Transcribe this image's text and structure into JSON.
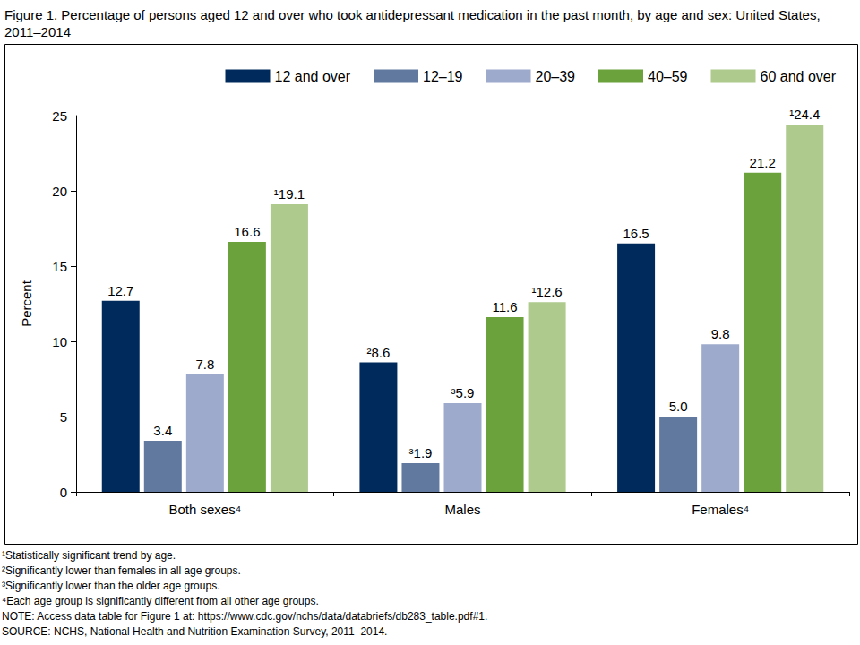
{
  "chart_data": {
    "type": "bar",
    "title": "Figure 1. Percentage of persons aged 12 and over who took antidepressant medication in the past month, by age and sex: United States, 2011–2014",
    "categories": [
      "Both sexes⁴",
      "Males",
      "Females⁴"
    ],
    "series": [
      {
        "name": "12 and over",
        "color": "#002a5c",
        "values": [
          12.7,
          8.6,
          16.5
        ],
        "value_labels": [
          "12.7",
          "²8.6",
          "16.5"
        ]
      },
      {
        "name": "12–19",
        "color": "#61789f",
        "values": [
          3.4,
          1.9,
          5.0
        ],
        "value_labels": [
          "3.4",
          "³1.9",
          "5.0"
        ]
      },
      {
        "name": "20–39",
        "color": "#9eaacb",
        "values": [
          7.8,
          5.9,
          9.8
        ],
        "value_labels": [
          "7.8",
          "³5.9",
          "9.8"
        ]
      },
      {
        "name": "40–59",
        "color": "#6ba23c",
        "values": [
          16.6,
          11.6,
          21.2
        ],
        "value_labels": [
          "16.6",
          "11.6",
          "21.2"
        ]
      },
      {
        "name": "60 and over",
        "color": "#aeca8d",
        "values": [
          19.1,
          12.6,
          24.4
        ],
        "value_labels": [
          "¹19.1",
          "¹12.6",
          "¹24.4"
        ]
      }
    ],
    "ylabel": "Percent",
    "ylim": [
      0,
      25
    ],
    "yticks": [
      0,
      5,
      10,
      15,
      20,
      25
    ],
    "grid": false,
    "legend": "top-right",
    "data_labels": true,
    "notes": [
      "¹Statistically significant trend by age.",
      "²Significantly lower than females in all age groups.",
      "³Significantly lower than the older age groups.",
      "⁴Each age group is significantly different from all other age groups.",
      "NOTE: Access data table for Figure 1 at: https://www.cdc.gov/nchs/data/databriefs/db283_table.pdf#1.",
      "SOURCE: NCHS, National Health and Nutrition Examination Survey, 2011–2014."
    ]
  }
}
